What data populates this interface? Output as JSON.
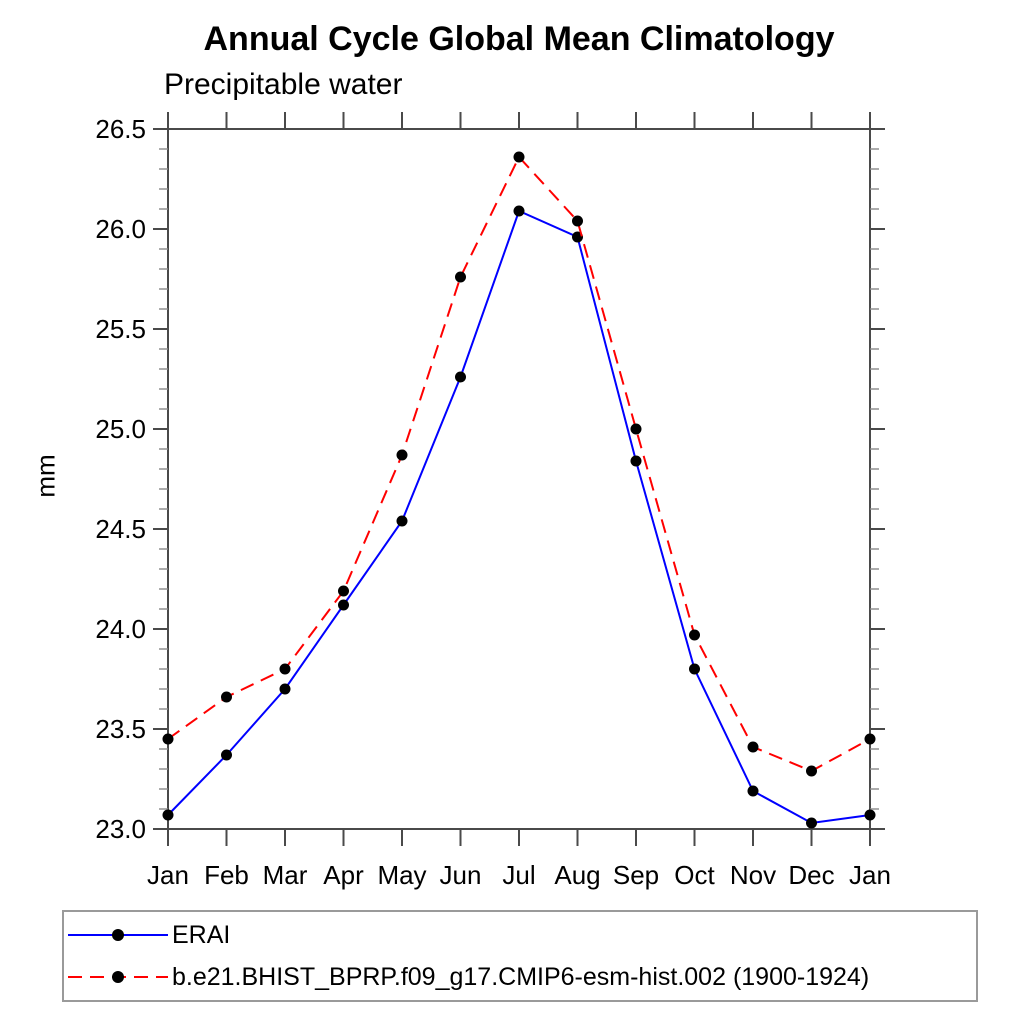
{
  "page": {
    "background": "#ffffff"
  },
  "chart_data": {
    "type": "line",
    "title": "Annual Cycle Global Mean Climatology",
    "subtitle": "Precipitable water",
    "ylabel": "mm",
    "xlabel": "",
    "categories": [
      "Jan",
      "Feb",
      "Mar",
      "Apr",
      "May",
      "Jun",
      "Jul",
      "Aug",
      "Sep",
      "Oct",
      "Nov",
      "Dec",
      "Jan"
    ],
    "series": [
      {
        "name": "ERAI",
        "color": "#0000ff",
        "line_style": "solid",
        "marker": "filled-circle",
        "marker_color": "#000000",
        "values": [
          23.07,
          23.37,
          23.7,
          24.12,
          24.54,
          25.26,
          26.09,
          25.96,
          24.84,
          23.8,
          23.19,
          23.03,
          23.07
        ]
      },
      {
        "name": "b.e21.BHIST_BPRP.f09_g17.CMIP6-esm-hist.002 (1900-1924)",
        "color": "#ff0000",
        "line_style": "dashed",
        "marker": "filled-circle",
        "marker_color": "#000000",
        "values": [
          23.45,
          23.66,
          23.8,
          24.19,
          24.87,
          25.76,
          26.36,
          26.04,
          25.0,
          23.97,
          23.41,
          23.29,
          23.45
        ]
      }
    ],
    "ylim": [
      23.0,
      26.5
    ],
    "ytick_labels": [
      "23.0",
      "23.5",
      "24.0",
      "24.5",
      "25.0",
      "25.5",
      "26.0",
      "26.5"
    ],
    "ytick_interval": 0.5,
    "yminor_interval": 0.1,
    "grid": false,
    "frame": "box-with-outward-ticks",
    "legend_position": "bottom-left-box"
  },
  "colors": {
    "axis": "#4a4a4a",
    "minor_tick": "#8a8a8a",
    "text": "#000000",
    "legend_border": "#9a9a9a"
  }
}
